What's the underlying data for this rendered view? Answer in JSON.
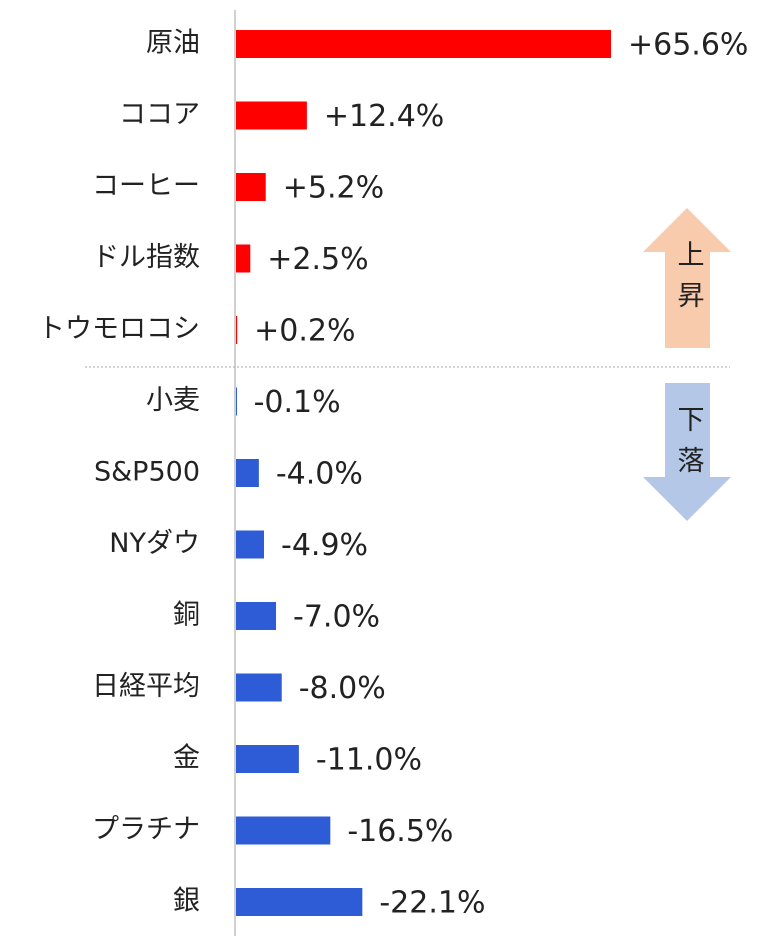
{
  "chart_data": {
    "type": "bar",
    "orientation": "horizontal",
    "categories": [
      "原油",
      "ココア",
      "コーヒー",
      "ドル指数",
      "トウモロコシ",
      "小麦",
      "S&P500",
      "NYダウ",
      "銅",
      "日経平均",
      "金",
      "プラチナ",
      "銀"
    ],
    "values": [
      65.6,
      12.4,
      5.2,
      2.5,
      0.2,
      -0.1,
      -4.0,
      -4.9,
      -7.0,
      -8.0,
      -11.0,
      -16.5,
      -22.1
    ],
    "value_labels": [
      "+65.6%",
      "+12.4%",
      "+5.2%",
      "+2.5%",
      "+0.2%",
      "-0.1%",
      "-4.0%",
      "-4.9%",
      "-7.0%",
      "-8.0%",
      "-11.0%",
      "-16.5%",
      "-22.1%"
    ],
    "colors": {
      "positive": "#ff0000",
      "negative": "#2e5bd6"
    },
    "annotations": [
      {
        "text": "上昇",
        "color": "#f8cbad"
      },
      {
        "text": "下落",
        "color": "#b4c7e7"
      }
    ]
  }
}
